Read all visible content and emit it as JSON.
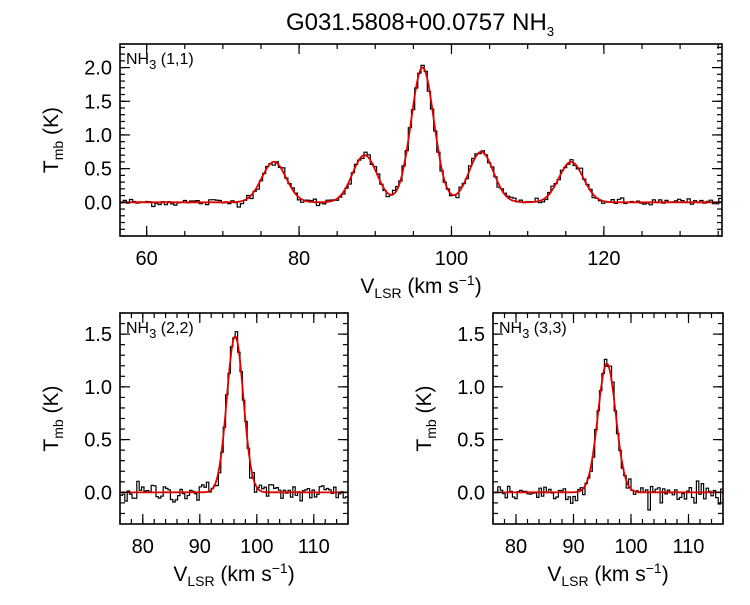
{
  "title_main": "G031.5808+00.0757 NH",
  "title_sub": "3",
  "chart_data": [
    {
      "type": "line",
      "panel_label": {
        "prefix": "NH",
        "sub": "3",
        "suffix": " (1,1)"
      },
      "xlabel": {
        "main": "V",
        "sub": "LSR",
        "unit": " (km s",
        "sup": "−1",
        "close": ")"
      },
      "ylabel": {
        "main": "T",
        "sub": "mb",
        "unit": " (K)"
      },
      "xlim": [
        56.5,
        135.5
      ],
      "ylim": [
        -0.5,
        2.35
      ],
      "xticks": [
        "60",
        "80",
        "100",
        "120"
      ],
      "yticks": [
        "0.0",
        "0.5",
        "1.0",
        "1.5",
        "2.0"
      ],
      "x_minor_step": 5,
      "y_minor_step": 0.1,
      "colors": {
        "observed": "#000000",
        "fit": "#e00000"
      },
      "fit_components": [
        {
          "center": 76.7,
          "amp": 0.6,
          "sigma": 1.6
        },
        {
          "center": 88.6,
          "amp": 0.7,
          "sigma": 1.6
        },
        {
          "center": 96.2,
          "amp": 2.0,
          "sigma": 1.5
        },
        {
          "center": 103.9,
          "amp": 0.75,
          "sigma": 1.6
        },
        {
          "center": 115.7,
          "amp": 0.6,
          "sigma": 1.6
        }
      ],
      "noise_rms": 0.03
    },
    {
      "type": "line",
      "panel_label": {
        "prefix": "NH",
        "sub": "3",
        "suffix": " (2,2)"
      },
      "xlabel": {
        "main": "V",
        "sub": "LSR",
        "unit": " (km s",
        "sup": "−1",
        "close": ")"
      },
      "ylabel": {
        "main": "T",
        "sub": "mb",
        "unit": " (K)"
      },
      "xlim": [
        76.0,
        116.0
      ],
      "ylim": [
        -0.3,
        1.7
      ],
      "xticks": [
        "80",
        "90",
        "100",
        "110"
      ],
      "yticks": [
        "0.0",
        "0.5",
        "1.0",
        "1.5"
      ],
      "x_minor_step": 2,
      "y_minor_step": 0.1,
      "colors": {
        "observed": "#000000",
        "fit": "#e00000"
      },
      "fit_components": [
        {
          "center": 96.2,
          "amp": 1.48,
          "sigma": 1.45
        }
      ],
      "noise_rms": 0.04
    },
    {
      "type": "line",
      "panel_label": {
        "prefix": "NH",
        "sub": "3",
        "suffix": " (3,3)"
      },
      "xlabel": {
        "main": "V",
        "sub": "LSR",
        "unit": " (km s",
        "sup": "−1",
        "close": ")"
      },
      "ylabel": {
        "main": "T",
        "sub": "mb",
        "unit": " (K)"
      },
      "xlim": [
        76.0,
        116.0
      ],
      "ylim": [
        -0.3,
        1.7
      ],
      "xticks": [
        "80",
        "90",
        "100",
        "110"
      ],
      "yticks": [
        "0.0",
        "0.5",
        "1.0",
        "1.5"
      ],
      "x_minor_step": 2,
      "y_minor_step": 0.1,
      "colors": {
        "observed": "#000000",
        "fit": "#e00000"
      },
      "fit_components": [
        {
          "center": 95.8,
          "amp": 1.22,
          "sigma": 1.55
        }
      ],
      "noise_rms": 0.04
    }
  ]
}
